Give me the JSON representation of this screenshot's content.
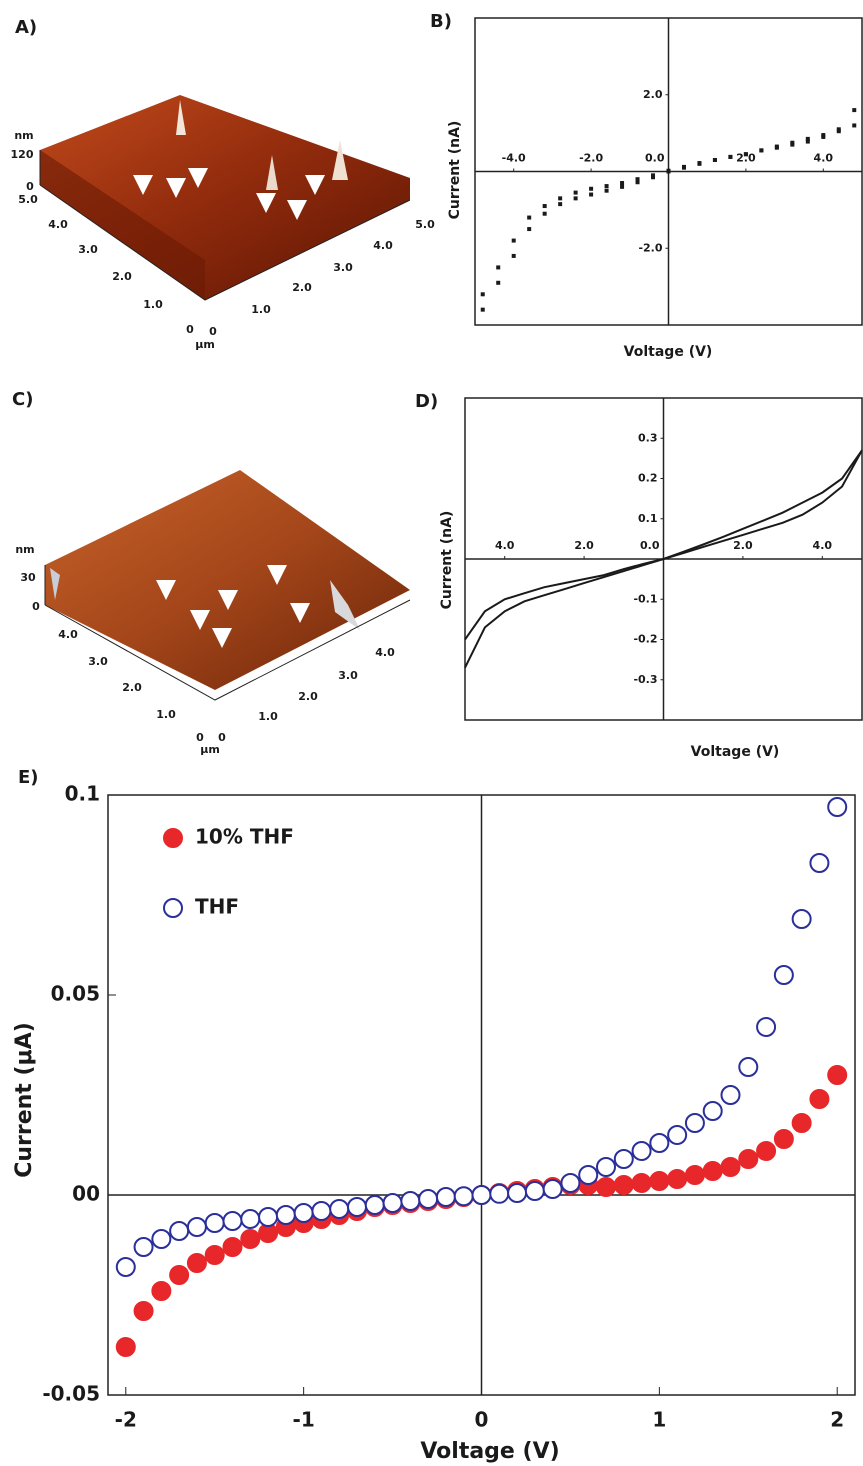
{
  "afm_images": [
    {
      "panel_label": "A)",
      "z_unit": "nm",
      "z_ticks": [
        "120",
        "0"
      ],
      "left_axis_ticks": [
        "5.0",
        "4.0",
        "3.0",
        "2.0",
        "1.0",
        "0"
      ],
      "right_axis_ticks": [
        "0",
        "1.0",
        "2.0",
        "3.0",
        "4.0",
        "5.0"
      ],
      "lateral_unit": "μm"
    },
    {
      "panel_label": "C)",
      "z_unit": "nm",
      "z_ticks": [
        "30",
        "0"
      ],
      "left_axis_ticks": [
        "4.0",
        "3.0",
        "2.0",
        "1.0",
        "0"
      ],
      "right_axis_ticks": [
        "0",
        "1.0",
        "2.0",
        "3.0",
        "4.0"
      ],
      "lateral_unit": "μm"
    }
  ],
  "chart_data": [
    {
      "panel_label": "B)",
      "type": "scatter",
      "x_label": "Voltage (V)",
      "y_label": "Current (nA)",
      "xlim": [
        -5,
        5
      ],
      "ylim": [
        -4,
        4
      ],
      "xticks": [
        {
          "value": -4,
          "label": "-4.0"
        },
        {
          "value": -2,
          "label": "-2.0"
        },
        {
          "value": 0,
          "label": "0.0"
        },
        {
          "value": 2,
          "label": "2.0"
        },
        {
          "value": 4,
          "label": "4.0"
        }
      ],
      "yticks": [
        {
          "value": 2,
          "label": "2.0"
        },
        {
          "value": -2,
          "label": "-2.0"
        }
      ],
      "x": [
        -4.8,
        -4.4,
        -4.0,
        -3.6,
        -3.2,
        -2.8,
        -2.4,
        -2.0,
        -1.6,
        -1.2,
        -0.8,
        -0.4,
        0,
        0.4,
        0.8,
        1.2,
        1.6,
        2.0,
        2.4,
        2.8,
        3.2,
        3.6,
        4.0,
        4.4,
        4.8
      ],
      "series": [
        {
          "color": "#1a1a1a",
          "marker": "square",
          "values": [
            -3.6,
            -2.9,
            -2.2,
            -1.5,
            -1.1,
            -0.85,
            -0.7,
            -0.6,
            -0.5,
            -0.4,
            -0.28,
            -0.15,
            0,
            0.1,
            0.2,
            0.3,
            0.38,
            0.45,
            0.55,
            0.65,
            0.75,
            0.85,
            0.95,
            1.05,
            1.2
          ]
        },
        {
          "color": "#1a1a1a",
          "marker": "square",
          "values": [
            -3.2,
            -2.5,
            -1.8,
            -1.2,
            -0.9,
            -0.7,
            -0.55,
            -0.45,
            -0.38,
            -0.3,
            -0.2,
            -0.1,
            0.02,
            0.12,
            0.22,
            0.3,
            0.38,
            0.45,
            0.55,
            0.62,
            0.7,
            0.78,
            0.9,
            1.1,
            1.6
          ]
        }
      ]
    },
    {
      "panel_label": "D)",
      "type": "line",
      "x_label": "Voltage (V)",
      "y_label": "Current (nA)",
      "xlim": [
        -5,
        5
      ],
      "ylim": [
        -0.4,
        0.4
      ],
      "xticks": [
        {
          "value": -4,
          "label": "4.0"
        },
        {
          "value": -2,
          "label": "2.0"
        },
        {
          "value": 0,
          "label": "0.0"
        },
        {
          "value": 2,
          "label": "2.0"
        },
        {
          "value": 4,
          "label": "4.0"
        }
      ],
      "yticks": [
        0.3,
        0.2,
        0.1,
        -0.1,
        -0.2,
        -0.3
      ],
      "x": [
        -5,
        -4.5,
        -4,
        -3.5,
        -3,
        -2.5,
        -2,
        -1.5,
        -1,
        -0.5,
        0,
        0.5,
        1,
        1.5,
        2,
        2.5,
        3,
        3.5,
        4,
        4.5,
        5
      ],
      "series": [
        {
          "color": "#1a1a1a",
          "values": [
            -0.27,
            -0.17,
            -0.13,
            -0.105,
            -0.09,
            -0.075,
            -0.06,
            -0.045,
            -0.03,
            -0.015,
            0,
            0.015,
            0.03,
            0.045,
            0.06,
            0.075,
            0.09,
            0.11,
            0.14,
            0.18,
            0.27
          ]
        },
        {
          "color": "#1a1a1a",
          "values": [
            -0.2,
            -0.13,
            -0.1,
            -0.085,
            -0.07,
            -0.06,
            -0.05,
            -0.04,
            -0.025,
            -0.012,
            0,
            0.018,
            0.036,
            0.055,
            0.075,
            0.095,
            0.115,
            0.14,
            0.165,
            0.2,
            0.27
          ]
        }
      ]
    },
    {
      "panel_label": "E)",
      "type": "scatter",
      "x_label": "Voltage (V)",
      "y_label": "Current (μA)",
      "xlim": [
        -2.1,
        2.1
      ],
      "ylim": [
        -0.05,
        0.1
      ],
      "xticks": [
        -2,
        -1,
        0,
        1,
        2
      ],
      "yticks": [
        -0.05,
        {
          "value": 0,
          "label": "00"
        },
        0.05,
        0.1
      ],
      "legend": "upper left",
      "x": [
        -2.0,
        -1.9,
        -1.8,
        -1.7,
        -1.6,
        -1.5,
        -1.4,
        -1.3,
        -1.2,
        -1.1,
        -1.0,
        -0.9,
        -0.8,
        -0.7,
        -0.6,
        -0.5,
        -0.4,
        -0.3,
        -0.2,
        -0.1,
        0,
        0.1,
        0.2,
        0.3,
        0.4,
        0.5,
        0.6,
        0.7,
        0.8,
        0.9,
        1.0,
        1.1,
        1.2,
        1.3,
        1.4,
        1.5,
        1.6,
        1.7,
        1.8,
        1.9,
        2.0
      ],
      "series": [
        {
          "name": "10% THF",
          "color": "#e8272a",
          "marker": "circle",
          "filled": true,
          "values": [
            -0.038,
            -0.029,
            -0.024,
            -0.02,
            -0.017,
            -0.015,
            -0.013,
            -0.011,
            -0.0095,
            -0.008,
            -0.007,
            -0.006,
            -0.005,
            -0.004,
            -0.003,
            -0.0025,
            -0.002,
            -0.0015,
            -0.001,
            -0.0005,
            0,
            0.0005,
            0.001,
            0.0015,
            0.002,
            0.0025,
            0.0025,
            0.002,
            0.0025,
            0.003,
            0.0035,
            0.004,
            0.005,
            0.006,
            0.007,
            0.009,
            0.011,
            0.014,
            0.018,
            0.024,
            0.03
          ]
        },
        {
          "name": "THF",
          "color": "#2b2f9a",
          "marker": "circle",
          "filled": false,
          "values": [
            -0.018,
            -0.013,
            -0.011,
            -0.009,
            -0.008,
            -0.007,
            -0.0065,
            -0.006,
            -0.0055,
            -0.005,
            -0.0045,
            -0.004,
            -0.0035,
            -0.003,
            -0.0025,
            -0.002,
            -0.0015,
            -0.001,
            -0.0005,
            -0.0003,
            0,
            0.0003,
            0.0005,
            0.001,
            0.0015,
            0.003,
            0.005,
            0.007,
            0.009,
            0.011,
            0.013,
            0.015,
            0.018,
            0.021,
            0.025,
            0.032,
            0.042,
            0.055,
            0.069,
            0.083,
            0.097
          ]
        }
      ]
    }
  ]
}
